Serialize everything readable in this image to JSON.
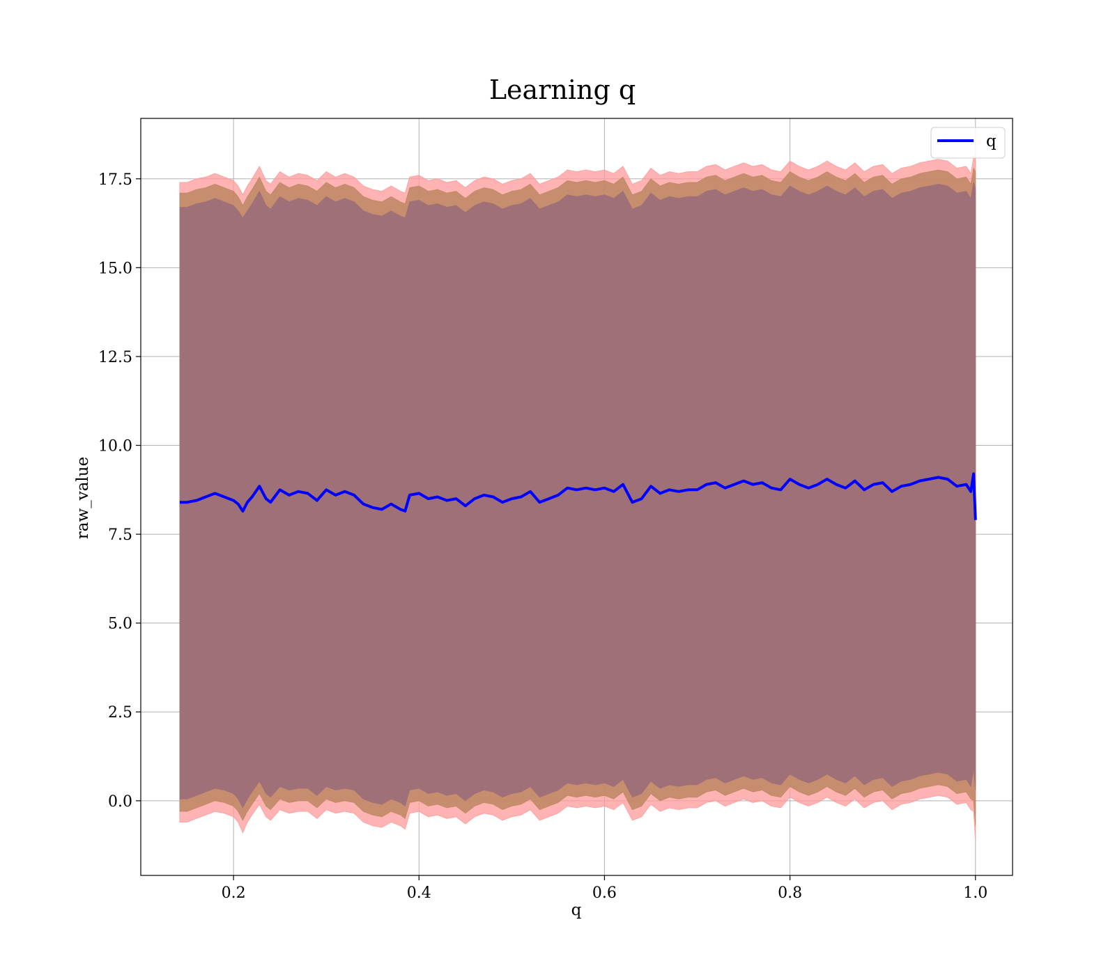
{
  "chart_data": {
    "type": "line",
    "title": "Learning q",
    "xlabel": "q",
    "ylabel": "raw_value",
    "xlim": [
      0.1,
      1.04
    ],
    "ylim": [
      -2.1,
      19.2
    ],
    "x_ticks": [
      0.2,
      0.4,
      0.6,
      0.8,
      1.0
    ],
    "x_tick_labels": [
      "0.2",
      "0.4",
      "0.6",
      "0.8",
      "1.0"
    ],
    "y_ticks": [
      0.0,
      2.5,
      5.0,
      7.5,
      10.0,
      12.5,
      15.0,
      17.5
    ],
    "y_tick_labels": [
      "0.0",
      "2.5",
      "5.0",
      "7.5",
      "10.0",
      "12.5",
      "15.0",
      "17.5"
    ],
    "grid": true,
    "legend_position": "top-right",
    "colors": {
      "line": "#0000ff",
      "outer_band": "#ff9999",
      "inner_band": "#c08866",
      "core_band": "#a07078",
      "grid": "#b0b0b0"
    },
    "series": [
      {
        "name": "q",
        "x": [
          0.142,
          0.15,
          0.16,
          0.17,
          0.18,
          0.19,
          0.2,
          0.205,
          0.21,
          0.215,
          0.22,
          0.228,
          0.235,
          0.24,
          0.25,
          0.26,
          0.27,
          0.28,
          0.29,
          0.3,
          0.31,
          0.32,
          0.33,
          0.34,
          0.35,
          0.36,
          0.37,
          0.38,
          0.385,
          0.39,
          0.4,
          0.41,
          0.42,
          0.43,
          0.44,
          0.45,
          0.46,
          0.47,
          0.48,
          0.49,
          0.5,
          0.51,
          0.52,
          0.53,
          0.54,
          0.55,
          0.56,
          0.57,
          0.58,
          0.59,
          0.6,
          0.61,
          0.62,
          0.63,
          0.64,
          0.65,
          0.66,
          0.67,
          0.68,
          0.69,
          0.7,
          0.71,
          0.72,
          0.73,
          0.74,
          0.75,
          0.76,
          0.77,
          0.78,
          0.79,
          0.8,
          0.81,
          0.82,
          0.83,
          0.84,
          0.85,
          0.86,
          0.87,
          0.88,
          0.89,
          0.9,
          0.91,
          0.92,
          0.93,
          0.94,
          0.95,
          0.96,
          0.97,
          0.98,
          0.99,
          0.995,
          0.998,
          1.0
        ],
        "values": [
          8.4,
          8.4,
          8.45,
          8.55,
          8.65,
          8.55,
          8.45,
          8.35,
          8.15,
          8.4,
          8.55,
          8.85,
          8.5,
          8.4,
          8.75,
          8.6,
          8.7,
          8.65,
          8.45,
          8.75,
          8.6,
          8.7,
          8.6,
          8.35,
          8.25,
          8.2,
          8.35,
          8.2,
          8.15,
          8.6,
          8.65,
          8.5,
          8.55,
          8.45,
          8.5,
          8.3,
          8.5,
          8.6,
          8.55,
          8.4,
          8.5,
          8.55,
          8.7,
          8.4,
          8.5,
          8.6,
          8.8,
          8.75,
          8.8,
          8.75,
          8.8,
          8.7,
          8.9,
          8.4,
          8.5,
          8.85,
          8.65,
          8.75,
          8.7,
          8.75,
          8.75,
          8.9,
          8.95,
          8.8,
          8.9,
          9.0,
          8.9,
          8.95,
          8.8,
          8.75,
          9.05,
          8.9,
          8.8,
          8.9,
          9.05,
          8.9,
          8.8,
          9.0,
          8.75,
          8.9,
          8.95,
          8.7,
          8.85,
          8.9,
          9.0,
          9.05,
          9.1,
          9.05,
          8.85,
          8.9,
          8.7,
          9.2,
          7.9
        ]
      }
    ],
    "bands": [
      {
        "name": "outer",
        "lower": [
          -0.6,
          -0.6,
          -0.5,
          -0.4,
          -0.3,
          -0.35,
          -0.45,
          -0.6,
          -0.9,
          -0.6,
          -0.4,
          -0.1,
          -0.45,
          -0.55,
          -0.25,
          -0.35,
          -0.3,
          -0.3,
          -0.5,
          -0.25,
          -0.35,
          -0.3,
          -0.35,
          -0.6,
          -0.7,
          -0.75,
          -0.6,
          -0.7,
          -0.8,
          -0.35,
          -0.3,
          -0.45,
          -0.4,
          -0.5,
          -0.45,
          -0.65,
          -0.45,
          -0.35,
          -0.4,
          -0.55,
          -0.45,
          -0.4,
          -0.25,
          -0.55,
          -0.45,
          -0.35,
          -0.15,
          -0.2,
          -0.15,
          -0.2,
          -0.15,
          -0.25,
          -0.05,
          -0.55,
          -0.45,
          -0.1,
          -0.3,
          -0.2,
          -0.25,
          -0.2,
          -0.2,
          -0.05,
          0.0,
          -0.15,
          -0.05,
          0.05,
          -0.05,
          0.0,
          -0.15,
          -0.2,
          0.1,
          -0.05,
          -0.15,
          -0.05,
          0.1,
          -0.05,
          -0.15,
          0.05,
          -0.2,
          -0.05,
          0.0,
          -0.25,
          -0.1,
          -0.05,
          0.05,
          0.1,
          0.15,
          0.1,
          -0.1,
          -0.05,
          -0.25,
          -0.3,
          -1.1
        ],
        "upper": [
          17.4,
          17.4,
          17.5,
          17.55,
          17.65,
          17.55,
          17.45,
          17.3,
          17.05,
          17.3,
          17.5,
          17.85,
          17.45,
          17.35,
          17.7,
          17.55,
          17.65,
          17.6,
          17.45,
          17.7,
          17.55,
          17.65,
          17.55,
          17.3,
          17.2,
          17.15,
          17.3,
          17.15,
          17.1,
          17.55,
          17.6,
          17.45,
          17.5,
          17.4,
          17.45,
          17.25,
          17.45,
          17.55,
          17.5,
          17.35,
          17.45,
          17.5,
          17.65,
          17.35,
          17.45,
          17.55,
          17.75,
          17.7,
          17.75,
          17.7,
          17.75,
          17.65,
          17.85,
          17.35,
          17.45,
          17.8,
          17.6,
          17.7,
          17.65,
          17.7,
          17.7,
          17.85,
          17.9,
          17.75,
          17.85,
          17.95,
          17.85,
          17.9,
          17.75,
          17.7,
          18.0,
          17.85,
          17.75,
          17.85,
          18.0,
          17.85,
          17.75,
          17.95,
          17.7,
          17.85,
          17.9,
          17.65,
          17.8,
          17.85,
          17.95,
          18.0,
          18.05,
          18.0,
          17.8,
          17.85,
          17.65,
          18.1,
          18.2
        ]
      },
      {
        "name": "inner",
        "lower": [
          -0.3,
          -0.3,
          -0.2,
          -0.1,
          0.0,
          -0.05,
          -0.15,
          -0.3,
          -0.55,
          -0.3,
          -0.1,
          0.2,
          -0.15,
          -0.25,
          0.05,
          -0.05,
          0.0,
          0.0,
          -0.2,
          0.05,
          -0.05,
          0.0,
          -0.05,
          -0.3,
          -0.4,
          -0.45,
          -0.3,
          -0.4,
          -0.5,
          -0.05,
          0.0,
          -0.15,
          -0.1,
          -0.2,
          -0.15,
          -0.35,
          -0.15,
          -0.05,
          -0.1,
          -0.25,
          -0.15,
          -0.1,
          0.05,
          -0.25,
          -0.15,
          -0.05,
          0.15,
          0.1,
          0.15,
          0.1,
          0.15,
          0.05,
          0.25,
          -0.25,
          -0.15,
          0.2,
          0.0,
          0.1,
          0.05,
          0.1,
          0.1,
          0.25,
          0.3,
          0.15,
          0.25,
          0.35,
          0.25,
          0.3,
          0.15,
          0.1,
          0.4,
          0.25,
          0.15,
          0.25,
          0.4,
          0.25,
          0.15,
          0.35,
          0.1,
          0.25,
          0.3,
          0.05,
          0.2,
          0.25,
          0.35,
          0.4,
          0.45,
          0.4,
          0.2,
          0.25,
          0.05,
          0.0,
          -0.7
        ],
        "upper": [
          17.1,
          17.1,
          17.2,
          17.25,
          17.35,
          17.25,
          17.15,
          17.0,
          16.75,
          17.0,
          17.2,
          17.55,
          17.15,
          17.05,
          17.4,
          17.25,
          17.35,
          17.3,
          17.15,
          17.4,
          17.25,
          17.35,
          17.25,
          17.0,
          16.9,
          16.85,
          17.0,
          16.85,
          16.8,
          17.25,
          17.3,
          17.15,
          17.2,
          17.1,
          17.15,
          16.95,
          17.15,
          17.25,
          17.2,
          17.05,
          17.15,
          17.2,
          17.35,
          17.05,
          17.15,
          17.25,
          17.45,
          17.4,
          17.45,
          17.4,
          17.45,
          17.35,
          17.55,
          17.05,
          17.15,
          17.5,
          17.3,
          17.4,
          17.35,
          17.4,
          17.4,
          17.55,
          17.6,
          17.45,
          17.55,
          17.65,
          17.55,
          17.6,
          17.45,
          17.4,
          17.7,
          17.55,
          17.45,
          17.55,
          17.7,
          17.55,
          17.45,
          17.65,
          17.4,
          17.55,
          17.6,
          17.35,
          17.5,
          17.55,
          17.65,
          17.7,
          17.75,
          17.7,
          17.5,
          17.55,
          17.35,
          17.8,
          17.7
        ]
      },
      {
        "name": "core",
        "lower": [
          0.05,
          0.05,
          0.15,
          0.25,
          0.35,
          0.3,
          0.2,
          0.05,
          -0.2,
          0.05,
          0.25,
          0.55,
          0.2,
          0.1,
          0.4,
          0.3,
          0.35,
          0.35,
          0.15,
          0.4,
          0.3,
          0.35,
          0.3,
          0.05,
          -0.05,
          -0.1,
          0.05,
          -0.05,
          -0.15,
          0.3,
          0.35,
          0.2,
          0.25,
          0.15,
          0.2,
          0.0,
          0.2,
          0.3,
          0.25,
          0.1,
          0.2,
          0.25,
          0.4,
          0.1,
          0.2,
          0.3,
          0.5,
          0.45,
          0.5,
          0.45,
          0.5,
          0.4,
          0.6,
          0.1,
          0.2,
          0.55,
          0.35,
          0.45,
          0.4,
          0.45,
          0.45,
          0.6,
          0.65,
          0.5,
          0.6,
          0.7,
          0.6,
          0.65,
          0.5,
          0.45,
          0.75,
          0.6,
          0.5,
          0.6,
          0.75,
          0.6,
          0.5,
          0.7,
          0.45,
          0.6,
          0.65,
          0.4,
          0.55,
          0.6,
          0.7,
          0.75,
          0.8,
          0.75,
          0.55,
          0.6,
          0.4,
          0.9,
          0.3
        ],
        "upper": [
          16.7,
          16.7,
          16.8,
          16.85,
          16.95,
          16.85,
          16.75,
          16.6,
          16.4,
          16.6,
          16.8,
          17.15,
          16.75,
          16.65,
          17.0,
          16.85,
          16.95,
          16.9,
          16.75,
          17.0,
          16.85,
          16.95,
          16.85,
          16.6,
          16.5,
          16.45,
          16.6,
          16.45,
          16.4,
          16.85,
          16.9,
          16.75,
          16.8,
          16.7,
          16.75,
          16.55,
          16.75,
          16.85,
          16.8,
          16.65,
          16.75,
          16.8,
          16.95,
          16.65,
          16.75,
          16.85,
          17.05,
          17.0,
          17.05,
          17.0,
          17.05,
          16.95,
          17.15,
          16.65,
          16.75,
          17.1,
          16.9,
          17.0,
          16.95,
          17.0,
          17.0,
          17.15,
          17.2,
          17.05,
          17.15,
          17.25,
          17.15,
          17.2,
          17.05,
          17.0,
          17.3,
          17.15,
          17.05,
          17.15,
          17.3,
          17.15,
          17.05,
          17.25,
          17.0,
          17.15,
          17.2,
          16.95,
          17.1,
          17.15,
          17.25,
          17.3,
          17.35,
          17.3,
          17.1,
          17.15,
          16.95,
          17.4,
          17.2
        ]
      }
    ]
  }
}
